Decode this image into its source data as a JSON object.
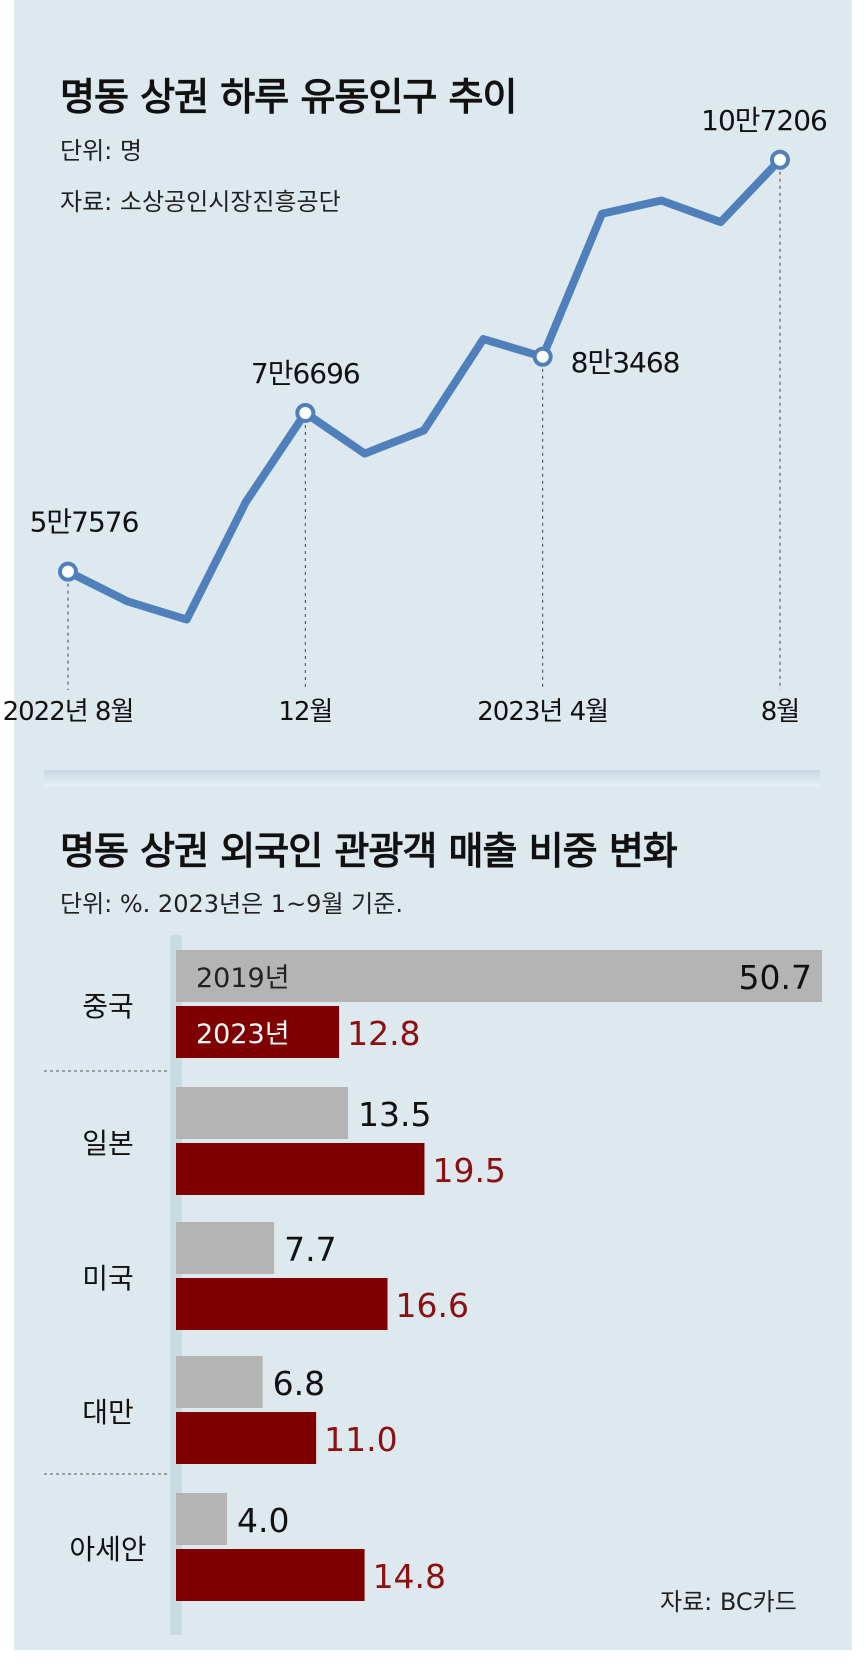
{
  "line_section": {
    "title": "명동 상권 하루 유동인구 추이",
    "unit": "단위: 명",
    "source": "자료: 소상공인시장진흥공단"
  },
  "bar_section": {
    "title": "명동 상권 외국인 관광객 매출 비중 변화",
    "unit": "단위: %. 2023년은 1~9월 기준.",
    "source": "자료: BC카드"
  },
  "colors": {
    "line": "#4f80bb",
    "bar_2019": "#b4b4b4",
    "bar_2023": "#7f0000",
    "value_2023": "#8b1010",
    "panel": "#dde9ef"
  },
  "chart_data": [
    {
      "type": "line",
      "title": "명동 상권 하루 유동인구 추이",
      "unit": "명",
      "x": [
        "2022-08",
        "2022-09",
        "2022-10",
        "2022-11",
        "2022-12",
        "2023-01",
        "2023-02",
        "2023-03",
        "2023-04",
        "2023-05",
        "2023-06",
        "2023-07",
        "2023-08"
      ],
      "values": [
        57576,
        54000,
        51800,
        66000,
        76696,
        71800,
        74600,
        85600,
        83468,
        100700,
        102300,
        99700,
        107206
      ],
      "ylim": [
        45000,
        112000
      ],
      "tick_labels": [
        {
          "index": 0,
          "label": "2022년 8월"
        },
        {
          "index": 4,
          "label": "12월"
        },
        {
          "index": 8,
          "label": "2023년 4월"
        },
        {
          "index": 12,
          "label": "8월"
        }
      ],
      "data_labels": [
        {
          "index": 0,
          "label": "5만7576"
        },
        {
          "index": 4,
          "label": "7만6696"
        },
        {
          "index": 8,
          "label": "8만3468"
        },
        {
          "index": 12,
          "label": "10만7206"
        }
      ],
      "grid": false
    },
    {
      "type": "bar",
      "orientation": "horizontal",
      "title": "명동 상권 외국인 관광객 매출 비중 변화",
      "unit": "%",
      "categories": [
        "중국",
        "일본",
        "미국",
        "대만",
        "아세안"
      ],
      "series": [
        {
          "name": "2019년",
          "values": [
            50.7,
            13.5,
            7.7,
            6.8,
            4.0
          ],
          "labels": [
            "50.7",
            "13.5",
            "7.7",
            "6.8",
            "4.0"
          ]
        },
        {
          "name": "2023년",
          "values": [
            12.8,
            19.5,
            16.6,
            11.0,
            14.8
          ],
          "labels": [
            "12.8",
            "19.5",
            "16.6",
            "11.0",
            "14.8"
          ]
        }
      ],
      "xlim": [
        0,
        50.7
      ],
      "grid": false
    }
  ]
}
